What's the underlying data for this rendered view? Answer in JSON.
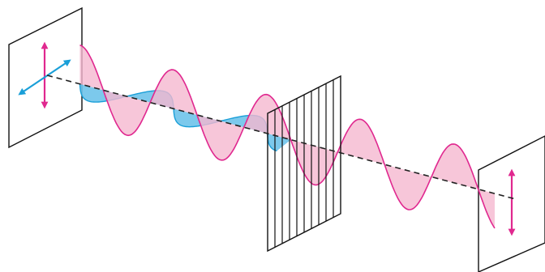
{
  "diagram": {
    "elements": [
      "entry-panel",
      "vertical-arrow",
      "horizontal-arrow",
      "vertical-wave",
      "horizontal-wave",
      "propagation-axis",
      "polarizer-grid",
      "exit-panel",
      "transmitted-arrow"
    ]
  },
  "colors": {
    "vertical_wave_line": "#e0288f",
    "vertical_wave_fill": "#f5b8cf",
    "horizontal_wave_line": "#1a9fd8",
    "horizontal_wave_fill": "#6ec3ea",
    "outline": "#111111",
    "axis": "#222222",
    "background": "#ffffff"
  },
  "icons": {
    "vertical_arrow": "double-headed-arrow",
    "horizontal_arrow": "double-headed-arrow"
  }
}
